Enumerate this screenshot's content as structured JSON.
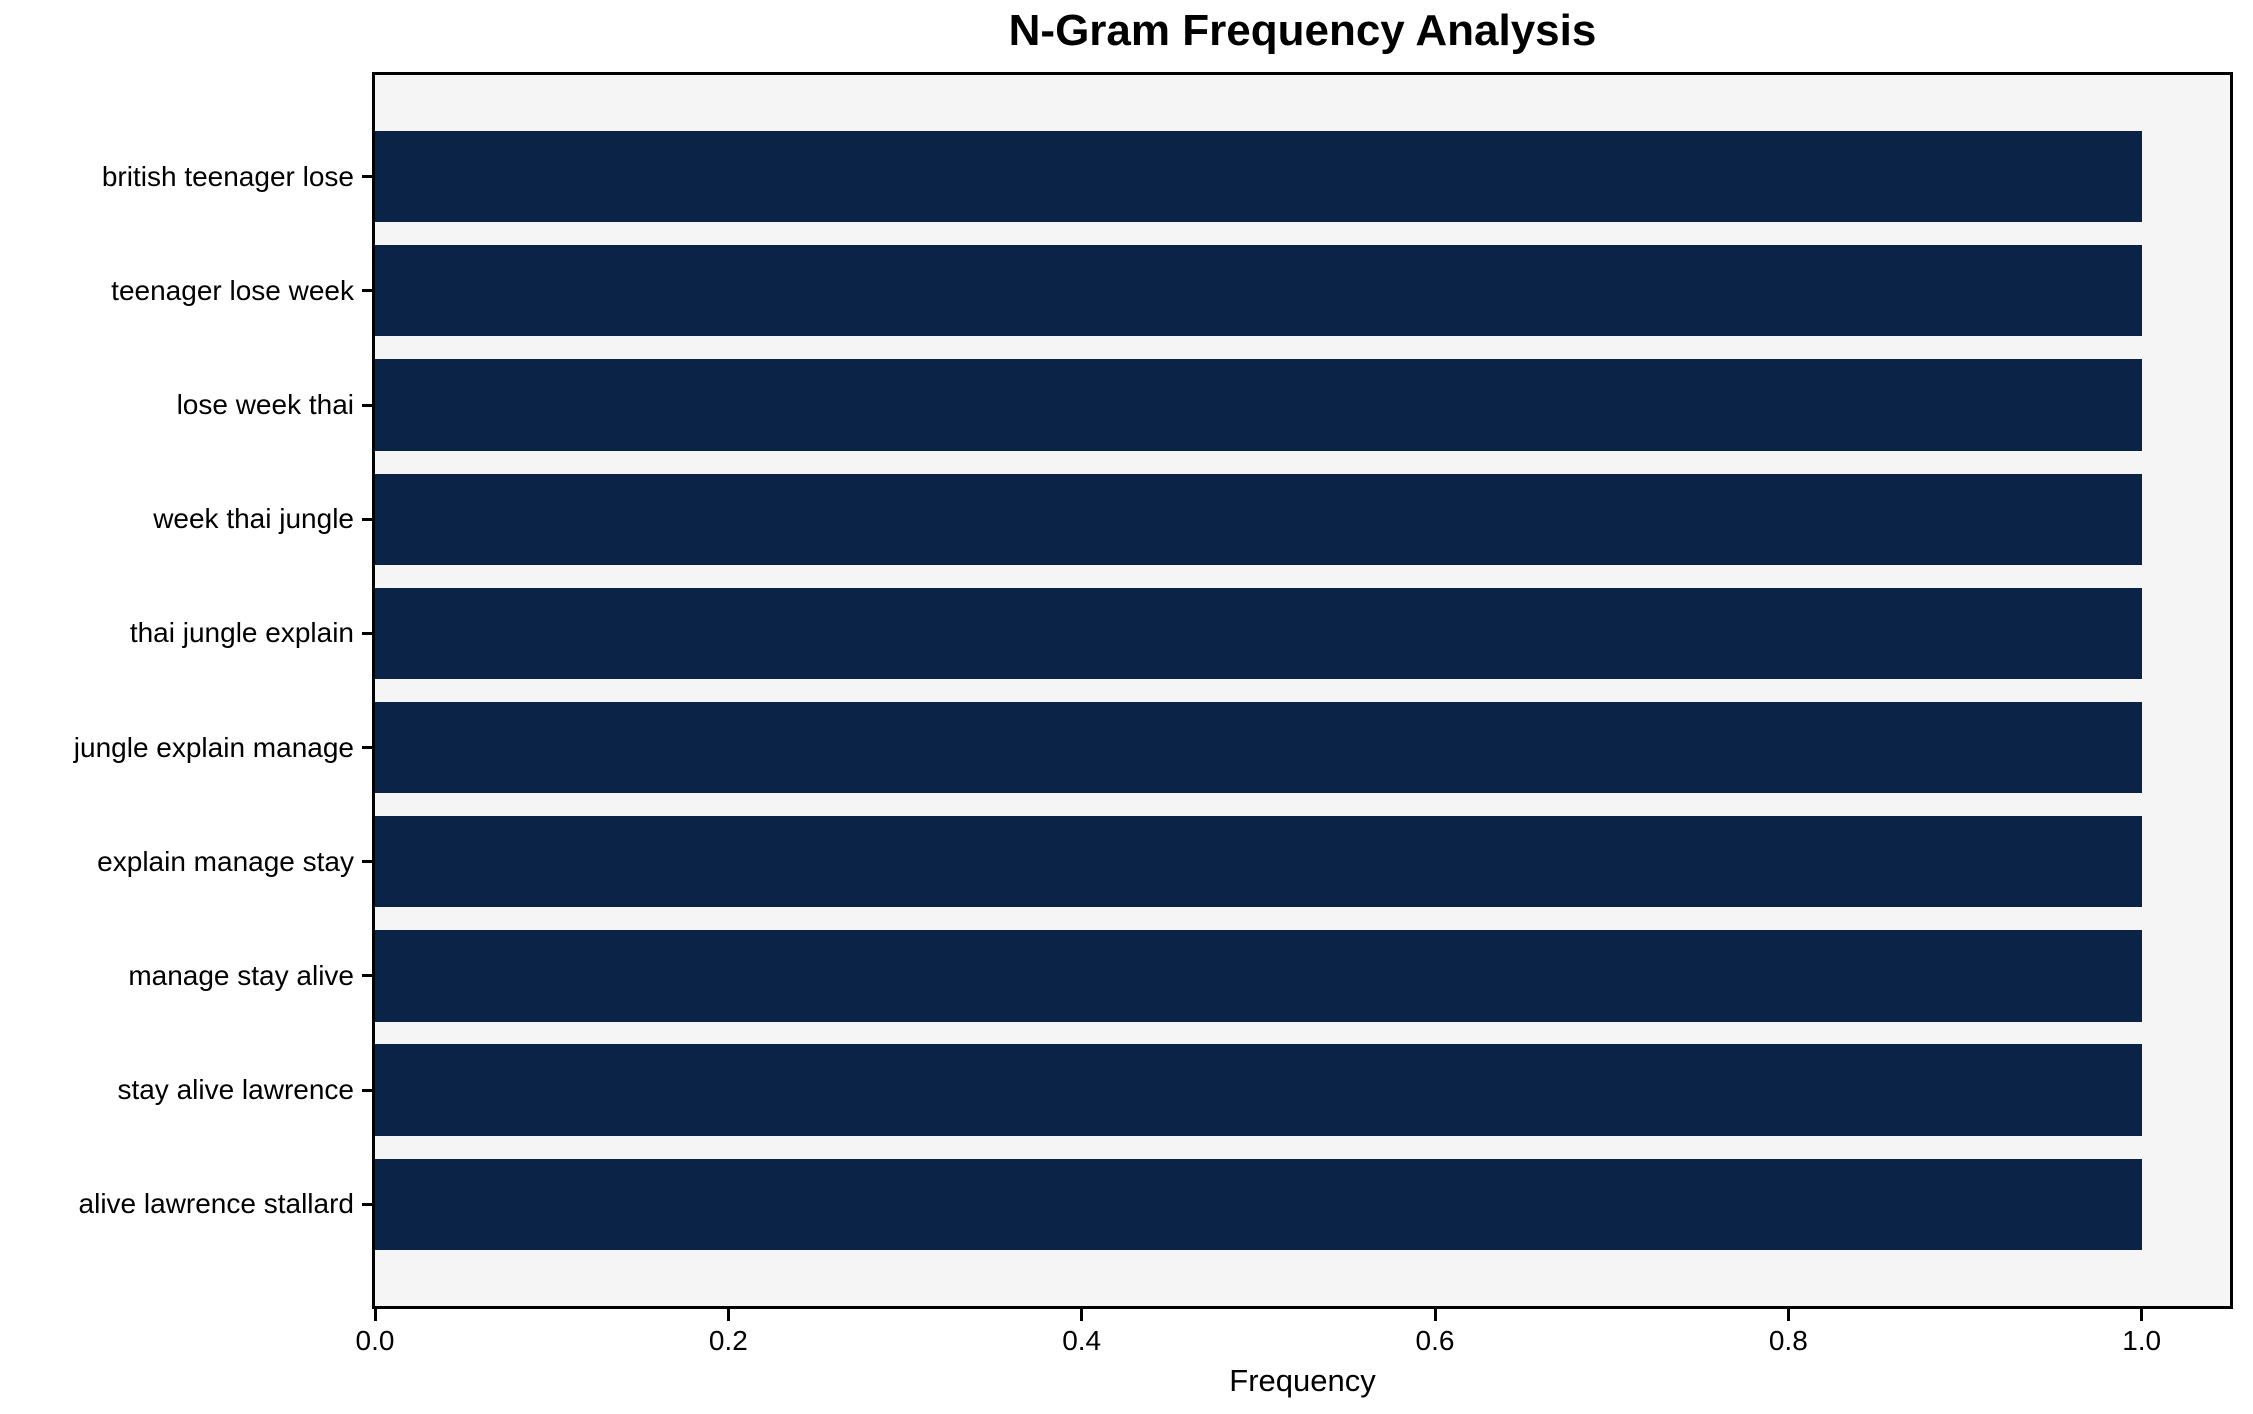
{
  "chart_data": {
    "type": "bar",
    "orientation": "horizontal",
    "title": "N-Gram Frequency Analysis",
    "xlabel": "Frequency",
    "ylabel": "",
    "categories": [
      "british teenager lose",
      "teenager lose week",
      "lose week thai",
      "week thai jungle",
      "thai jungle explain",
      "jungle explain manage",
      "explain manage stay",
      "manage stay alive",
      "stay alive lawrence",
      "alive lawrence stallard"
    ],
    "values": [
      1.0,
      1.0,
      1.0,
      1.0,
      1.0,
      1.0,
      1.0,
      1.0,
      1.0,
      1.0
    ],
    "xlim": [
      0,
      1.05
    ],
    "x_tick_values": [
      0.0,
      0.2,
      0.4,
      0.6,
      0.8,
      1.0
    ],
    "x_tick_labels": [
      "0.0",
      "0.2",
      "0.4",
      "0.6",
      "0.8",
      "1.0"
    ],
    "bar_height_fraction": 0.8,
    "grid": false,
    "legend_visible": false,
    "colors": {
      "bar": "#0a2347",
      "plot_background": "#f5f5f6",
      "figure_background": "#ffffff",
      "spine": "#000000",
      "text": "#000000"
    }
  }
}
